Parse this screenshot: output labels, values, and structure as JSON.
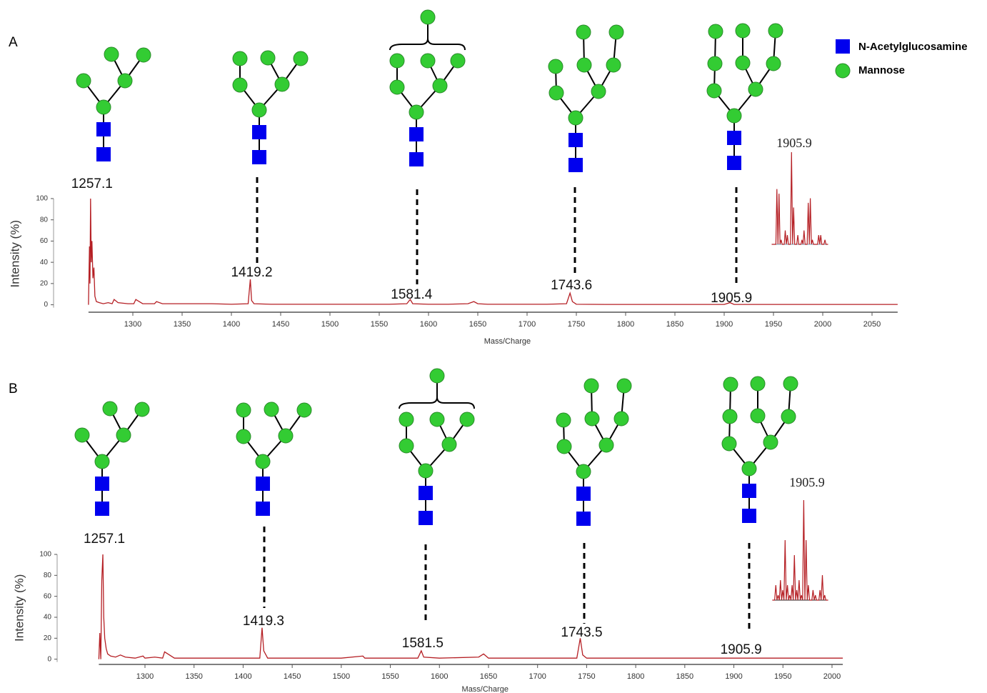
{
  "legend": [
    {
      "name": "N-Acetylglucosamine",
      "color": "#0000ee"
    },
    {
      "name": "Mannose",
      "color": "#33cc33"
    }
  ],
  "chart_data": [
    {
      "type": "line",
      "title": "A",
      "x_label": "Mass/Charge",
      "y_label": "Intensity (%)",
      "xlim": [
        1255,
        2076
      ],
      "ylim": [
        -7,
        103
      ],
      "xticks": [
        1300,
        1350,
        1400,
        1450,
        1500,
        1550,
        1600,
        1650,
        1700,
        1750,
        1800,
        1850,
        1900,
        1950,
        2000,
        2050
      ],
      "yticks": [
        0,
        20,
        40,
        60,
        80,
        100
      ],
      "series": [
        {
          "color": "#b51f24",
          "x": [
            1255,
            1256,
            1256.5,
            1257.1,
            1257.8,
            1258.5,
            1259.5,
            1260.5,
            1261.5,
            1263,
            1266,
            1270,
            1275,
            1279,
            1281,
            1285,
            1295,
            1301,
            1303,
            1310,
            1322,
            1324,
            1330,
            1350,
            1380,
            1400,
            1417,
            1419.2,
            1420.5,
            1423,
            1440,
            1480,
            1520,
            1560,
            1578,
            1581.4,
            1584,
            1600,
            1620,
            1640,
            1646,
            1650,
            1660,
            1700,
            1720,
            1740,
            1743.6,
            1746,
            1750,
            1780,
            1850,
            1900,
            1905.9,
            1910,
            1950,
            2000,
            2050,
            2076
          ],
          "values": [
            0,
            55,
            20,
            100,
            40,
            60,
            25,
            35,
            8,
            3,
            2,
            1,
            2,
            1,
            5,
            2,
            1,
            1,
            5,
            1,
            1,
            3,
            1,
            1,
            1,
            0.5,
            1,
            24,
            4,
            1,
            0.5,
            0.5,
            0.5,
            0.5,
            1,
            5,
            1,
            0.5,
            0.5,
            1,
            3,
            1,
            0.5,
            0.5,
            0.5,
            1,
            11,
            3,
            0.5,
            0.3,
            0.3,
            0.3,
            2,
            0.3,
            0.3,
            0.3,
            0.3,
            0.3
          ]
        }
      ],
      "peak_labels": [
        1257.1,
        1419.2,
        1581.4,
        1743.6,
        1905.9
      ],
      "inset_values": [
        0,
        0,
        60,
        55,
        5,
        0,
        15,
        10,
        0,
        100,
        40,
        0,
        10,
        0,
        5,
        15,
        0,
        45,
        50,
        5,
        0,
        0,
        10,
        10,
        0,
        5,
        0
      ]
    },
    {
      "type": "line",
      "title": "B",
      "x_label": "Mass/Charge",
      "y_label": "Intensity (%)",
      "xlim": [
        1253,
        2011
      ],
      "ylim": [
        -5,
        103
      ],
      "xticks": [
        1300,
        1350,
        1400,
        1450,
        1500,
        1550,
        1600,
        1650,
        1700,
        1750,
        1800,
        1850,
        1900,
        1950,
        2000
      ],
      "yticks": [
        0,
        20,
        40,
        60,
        80,
        100
      ],
      "series": [
        {
          "color": "#b51f24",
          "x": [
            1253,
            1254,
            1255,
            1256,
            1257.1,
            1258,
            1259,
            1260.5,
            1262,
            1265,
            1270,
            1275,
            1280,
            1290,
            1298,
            1300,
            1310,
            1318,
            1320,
            1330,
            1360,
            1400,
            1417,
            1419.3,
            1421,
            1425,
            1450,
            1500,
            1522,
            1524,
            1560,
            1578,
            1581.5,
            1584,
            1600,
            1640,
            1645,
            1650,
            1700,
            1740,
            1743.5,
            1746,
            1750,
            1800,
            1900,
            1905.9,
            1910,
            1950,
            2000,
            2011
          ],
          "values": [
            0,
            25,
            0,
            75,
            100,
            40,
            20,
            10,
            5,
            3,
            2,
            4,
            2,
            1,
            3,
            1,
            2,
            1,
            7,
            1,
            1,
            1,
            1,
            30,
            8,
            1,
            1,
            1,
            3,
            1,
            1,
            1,
            8,
            2,
            1,
            2,
            5,
            1,
            1,
            1,
            20,
            4,
            1,
            1,
            1,
            1,
            1,
            1,
            1,
            1
          ]
        }
      ],
      "peak_labels": [
        1257.1,
        1419.3,
        1581.5,
        1743.5,
        1905.9
      ],
      "inset_values": [
        0,
        15,
        5,
        20,
        10,
        60,
        15,
        5,
        15,
        45,
        10,
        20,
        5,
        100,
        60,
        15,
        0,
        10,
        5,
        0,
        10,
        25,
        5,
        0
      ]
    }
  ]
}
